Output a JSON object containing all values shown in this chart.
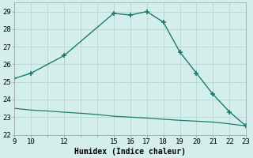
{
  "xlabel": "Humidex (Indice chaleur)",
  "bg_color": "#d4eeec",
  "grid_color": "#b8dbd8",
  "line_color": "#1e7a70",
  "upper_x": [
    9,
    10,
    12,
    15,
    16,
    17,
    18,
    19,
    20,
    21,
    22,
    23
  ],
  "upper_y": [
    25.2,
    25.5,
    26.5,
    28.9,
    28.8,
    29.0,
    28.4,
    26.7,
    25.5,
    24.3,
    23.3,
    22.5
  ],
  "lower_x": [
    9,
    10,
    11,
    12,
    13,
    14,
    15,
    16,
    17,
    18,
    19,
    20,
    21,
    22,
    23
  ],
  "lower_y": [
    23.5,
    23.4,
    23.35,
    23.28,
    23.22,
    23.15,
    23.05,
    23.0,
    22.95,
    22.88,
    22.82,
    22.77,
    22.72,
    22.62,
    22.5
  ],
  "xlim": [
    9,
    23
  ],
  "ylim": [
    22,
    29.5
  ],
  "yticks": [
    22,
    23,
    24,
    25,
    26,
    27,
    28,
    29
  ],
  "xticks": [
    9,
    10,
    11,
    12,
    13,
    14,
    15,
    16,
    17,
    18,
    19,
    20,
    21,
    22,
    23
  ],
  "xtick_labels": [
    "9",
    "10",
    "",
    "12",
    "",
    "",
    "15",
    "16",
    "17",
    "18",
    "19",
    "20",
    "21",
    "22",
    "23"
  ]
}
